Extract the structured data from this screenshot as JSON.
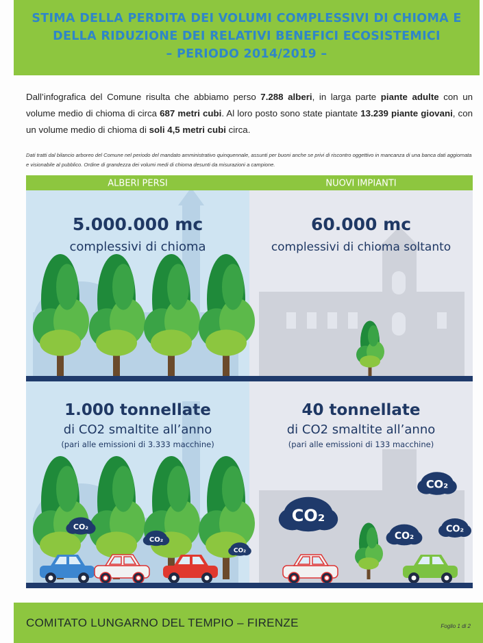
{
  "header": {
    "title_lines": [
      "STIMA DELLA PERDITA DEI VOLUMI COMPLESSIVI DI CHIOMA E",
      "DELLA RIDUZIONE DEI RELATIVI BENEFICI ECOSISTEMICI",
      "– PERIODO 2014/2019 –"
    ]
  },
  "intro": {
    "runs": [
      {
        "text": "Dall’infografica del Comune risulta che abbiamo perso ",
        "bold": false
      },
      {
        "text": "7.288 alberi",
        "bold": true
      },
      {
        "text": ", in larga parte ",
        "bold": false
      },
      {
        "text": "piante adulte",
        "bold": true
      },
      {
        "text": " con un volume medio di chioma di circa ",
        "bold": false
      },
      {
        "text": "687 metri cubi",
        "bold": true
      },
      {
        "text": ". Al loro posto sono state piantate ",
        "bold": false
      },
      {
        "text": "13.239 piante giovani",
        "bold": true
      },
      {
        "text": ", con un volume medio di chioma di ",
        "bold": false
      },
      {
        "text": "soli 4,5 metri cubi",
        "bold": true
      },
      {
        "text": " circa.",
        "bold": false
      }
    ]
  },
  "note": "Dati tratti dal bilancio arboreo del Comune nel periodo del mandato amministrativo quinquennale, assunti per buoni anche se privi di riscontro oggettivo in mancanza di una banca dati aggiornata e visionabile al pubblico. Ordine di grandezza dei volumi medi di chioma desunti da misurazioni a campione.",
  "infographic": {
    "columns": [
      {
        "heading": "ALBERI PERSI",
        "volume": {
          "amount": "5.000.000 mc",
          "caption": "complessivi di chioma"
        },
        "co2": {
          "amount": "1.000 tonnellate",
          "caption": "di CO2 smaltite all’anno",
          "detail": "(pari alle emissioni di 3.333 macchine)"
        }
      },
      {
        "heading": "NUOVI IMPIANTI",
        "volume": {
          "amount": "60.000 mc",
          "caption": "complessivi di chioma soltanto"
        },
        "co2": {
          "amount": "40 tonnellate",
          "caption": "di CO2 smaltite all’anno",
          "detail": "(pari alle emissioni di 133 macchine)"
        }
      }
    ],
    "co2_label": "CO₂"
  },
  "footer": {
    "text": "COMITATO LUNGARNO DEL TEMPIO – FIRENZE",
    "page": "Foglio 1 di 2"
  }
}
